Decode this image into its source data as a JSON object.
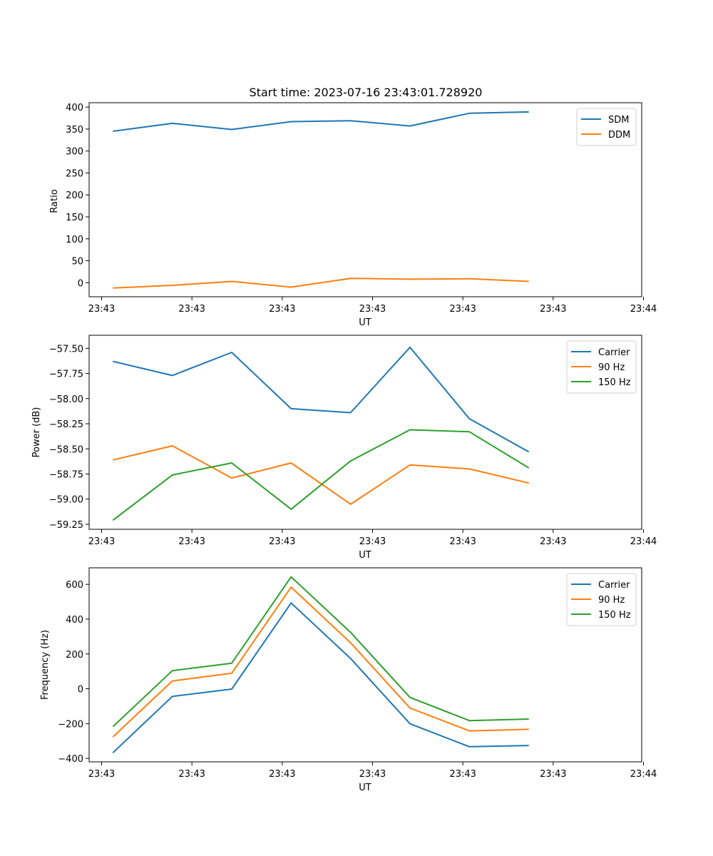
{
  "colors": {
    "c0": "#1f77b4",
    "c1": "#ff7f0e",
    "c2": "#2ca02c"
  },
  "chart_data": [
    {
      "type": "line",
      "title": "Start time: 2023-07-16 23:43:01.728920",
      "xlabel": "UT",
      "ylabel": "Ratio",
      "ylim": [
        -32,
        410
      ],
      "xlim": [
        0.6,
        9.9
      ],
      "x": [
        1,
        2,
        3,
        4,
        5,
        6,
        7,
        8
      ],
      "xticks": [
        0.81,
        2.33,
        3.85,
        5.37,
        6.89,
        8.41,
        9.93
      ],
      "xtick_labels": [
        "23:43",
        "23:43",
        "23:43",
        "23:43",
        "23:43",
        "23:43",
        "23:44"
      ],
      "yticks": [
        0,
        50,
        100,
        150,
        200,
        250,
        300,
        350,
        400
      ],
      "ytick_labels": [
        "0",
        "50",
        "100",
        "150",
        "200",
        "250",
        "300",
        "350",
        "400"
      ],
      "legend_position": "top-right",
      "series": [
        {
          "name": "SDM",
          "color": "#1f77b4",
          "values": [
            345,
            363,
            349,
            367,
            369,
            357,
            386,
            389
          ]
        },
        {
          "name": "DDM",
          "color": "#ff7f0e",
          "values": [
            -12,
            -6,
            3,
            -10,
            10,
            8,
            9,
            3
          ]
        }
      ]
    },
    {
      "type": "line",
      "title": "",
      "xlabel": "UT",
      "ylabel": "Power (dB)",
      "ylim": [
        -59.3,
        -57.37
      ],
      "xlim": [
        0.6,
        9.9
      ],
      "x": [
        1,
        2,
        3,
        4,
        5,
        6,
        7,
        8
      ],
      "xticks": [
        0.81,
        2.33,
        3.85,
        5.37,
        6.89,
        8.41,
        9.93
      ],
      "xtick_labels": [
        "23:43",
        "23:43",
        "23:43",
        "23:43",
        "23:43",
        "23:43",
        "23:44"
      ],
      "yticks": [
        -57.5,
        -57.75,
        -58.0,
        -58.25,
        -58.5,
        -58.75,
        -59.0,
        -59.25
      ],
      "ytick_labels": [
        "−57.50",
        "−57.75",
        "−58.00",
        "−58.25",
        "−58.50",
        "−58.75",
        "−59.00",
        "−59.25"
      ],
      "legend_position": "top-right",
      "series": [
        {
          "name": "Carrier",
          "color": "#1f77b4",
          "values": [
            -57.63,
            -57.77,
            -57.54,
            -58.1,
            -58.14,
            -57.49,
            -58.2,
            -58.53
          ]
        },
        {
          "name": "90 Hz",
          "color": "#ff7f0e",
          "values": [
            -58.61,
            -58.47,
            -58.79,
            -58.64,
            -59.05,
            -58.66,
            -58.7,
            -58.84
          ]
        },
        {
          "name": "150 Hz",
          "color": "#2ca02c",
          "values": [
            -59.21,
            -58.76,
            -58.64,
            -59.1,
            -58.62,
            -58.31,
            -58.33,
            -58.69
          ]
        }
      ]
    },
    {
      "type": "line",
      "title": "",
      "xlabel": "UT",
      "ylabel": "Frequency (Hz)",
      "ylim": [
        -420,
        695
      ],
      "xlim": [
        0.6,
        9.9
      ],
      "x": [
        1,
        2,
        3,
        4,
        5,
        6,
        7,
        8
      ],
      "xticks": [
        0.81,
        2.33,
        3.85,
        5.37,
        6.89,
        8.41,
        9.93
      ],
      "xtick_labels": [
        "23:43",
        "23:43",
        "23:43",
        "23:43",
        "23:43",
        "23:43",
        "23:44"
      ],
      "yticks": [
        600,
        400,
        200,
        0,
        -200,
        -400
      ],
      "ytick_labels": [
        "600",
        "400",
        "200",
        "0",
        "−200",
        "−400"
      ],
      "legend_position": "top-right",
      "series": [
        {
          "name": "Carrier",
          "color": "#1f77b4",
          "values": [
            -368,
            -44,
            -2,
            493,
            174,
            -201,
            -333,
            -326
          ]
        },
        {
          "name": "90 Hz",
          "color": "#ff7f0e",
          "values": [
            -277,
            45,
            89,
            584,
            264,
            -111,
            -242,
            -233
          ]
        },
        {
          "name": "150 Hz",
          "color": "#2ca02c",
          "values": [
            -218,
            104,
            147,
            643,
            324,
            -50,
            -183,
            -174
          ]
        }
      ]
    }
  ]
}
